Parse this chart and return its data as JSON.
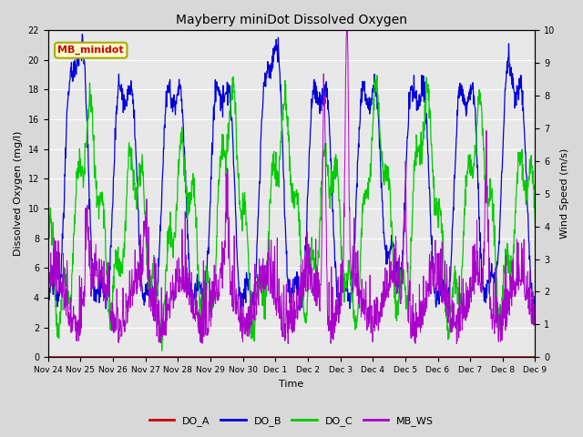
{
  "title": "Mayberry miniDot Dissolved Oxygen",
  "xlabel": "Time",
  "ylabel_left": "Dissolved Oxygen (mg/l)",
  "ylabel_right": "Wind Speed (m/s)",
  "ylim_left": [
    0,
    22
  ],
  "ylim_right": [
    0.0,
    10.0
  ],
  "yticks_left": [
    0,
    2,
    4,
    6,
    8,
    10,
    12,
    14,
    16,
    18,
    20,
    22
  ],
  "yticks_right": [
    0.0,
    1.0,
    2.0,
    3.0,
    4.0,
    5.0,
    6.0,
    7.0,
    8.0,
    9.0,
    10.0
  ],
  "bg_color": "#d8d8d8",
  "plot_bg_color": "#e8e8e8",
  "colors": {
    "DO_A": "#cc0000",
    "DO_B": "#0000dd",
    "DO_C": "#00cc00",
    "MB_WS": "#aa00cc"
  },
  "legend_label": "MB_minidot",
  "legend_label_color": "#cc0000",
  "legend_box_color": "#ffffcc",
  "legend_box_edge": "#aaaa00",
  "xtick_labels": [
    "Nov 24",
    "Nov 25",
    "Nov 26",
    "Nov 27",
    "Nov 28",
    "Nov 29",
    "Nov 30",
    "Dec 1",
    "Dec 2",
    "Dec 3",
    "Dec 4",
    "Dec 5",
    "Dec 6",
    "Dec 7",
    "Dec 8",
    "Dec 9"
  ],
  "seed": 42
}
